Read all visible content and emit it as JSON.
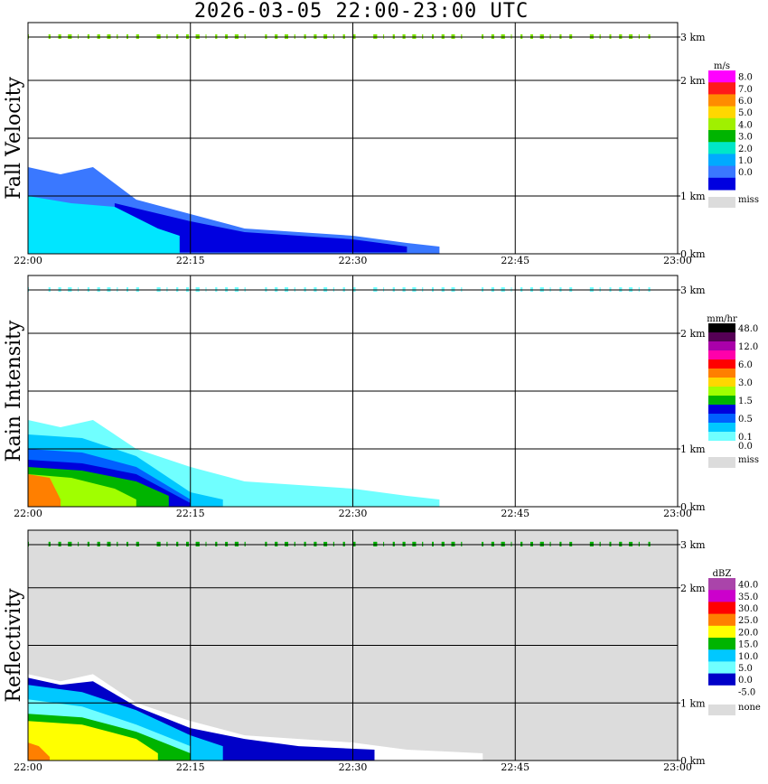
{
  "title": "2026-03-05  22:00-23:00 UTC",
  "x_ticks": [
    "22:00",
    "22:15",
    "22:30",
    "22:45",
    "23:00"
  ],
  "colors": {
    "frame": "#000000",
    "no_data_background": "#dcdcdc",
    "missing_swatch": "#dcdcdc"
  },
  "chart_data": [
    {
      "type": "heatmap",
      "ylabel": "Fall Velocity",
      "unit": "m/s",
      "y_ticks": [
        "0 km",
        "1 km",
        "2 km",
        "3 km"
      ],
      "ylim_km": [
        0,
        3.2
      ],
      "x_range": [
        "22:00",
        "23:00"
      ],
      "background": "#ffffff",
      "scale": [
        {
          "label": "8.0",
          "color": "#ff00ff"
        },
        {
          "label": "7.0",
          "color": "#ff1a1a"
        },
        {
          "label": "6.0",
          "color": "#ff8c00"
        },
        {
          "label": "5.0",
          "color": "#ffd700"
        },
        {
          "label": "4.0",
          "color": "#a0f000"
        },
        {
          "label": "3.0",
          "color": "#00b400"
        },
        {
          "label": "2.0",
          "color": "#00e6c8"
        },
        {
          "label": "1.0",
          "color": "#00aaff"
        },
        {
          "label": "0.0",
          "color": "#3a78ff"
        },
        {
          "label": "",
          "color": "#0000e0"
        }
      ],
      "miss_label": "miss",
      "echo_layers": [
        {
          "color": "#3a78ff",
          "top_km": [
            [
              0,
              1.2
            ],
            [
              3,
              1.1
            ],
            [
              6,
              1.2
            ],
            [
              10,
              0.75
            ],
            [
              15,
              0.55
            ],
            [
              20,
              0.35
            ],
            [
              25,
              0.3
            ],
            [
              30,
              0.25
            ],
            [
              35,
              0.15
            ],
            [
              38,
              0.1
            ],
            [
              38,
              0
            ],
            [
              0,
              0
            ]
          ]
        },
        {
          "color": "#0000e0",
          "top_km": [
            [
              8,
              0.7
            ],
            [
              15,
              0.45
            ],
            [
              20,
              0.3
            ],
            [
              25,
              0.25
            ],
            [
              30,
              0.2
            ],
            [
              35,
              0.1
            ],
            [
              35,
              0.02
            ],
            [
              8,
              0.02
            ]
          ]
        },
        {
          "color": "#00e6ff",
          "top_km": [
            [
              0,
              0.8
            ],
            [
              4,
              0.7
            ],
            [
              8,
              0.65
            ],
            [
              12,
              0.35
            ],
            [
              14,
              0.25
            ],
            [
              14,
              0
            ],
            [
              0,
              0
            ]
          ]
        }
      ],
      "near_3km_band_color": "#7ee600"
    },
    {
      "type": "heatmap",
      "ylabel": "Rain Intensity",
      "unit": "mm/hr",
      "y_ticks": [
        "0 km",
        "1 km",
        "2 km",
        "3 km"
      ],
      "ylim_km": [
        0,
        3.2
      ],
      "x_range": [
        "22:00",
        "23:00"
      ],
      "background": "#ffffff",
      "scale": [
        {
          "label": "48.0",
          "color": "#000000"
        },
        {
          "label": "",
          "color": "#550055"
        },
        {
          "label": "12.0",
          "color": "#aa00aa"
        },
        {
          "label": "",
          "color": "#ff00aa"
        },
        {
          "label": "6.0",
          "color": "#ff0000"
        },
        {
          "label": "",
          "color": "#ff7f00"
        },
        {
          "label": "3.0",
          "color": "#ffd700"
        },
        {
          "label": "",
          "color": "#a0ff00"
        },
        {
          "label": "1.5",
          "color": "#00b400"
        },
        {
          "label": "",
          "color": "#0000dc"
        },
        {
          "label": "0.5",
          "color": "#0060ff"
        },
        {
          "label": "",
          "color": "#00c8ff"
        },
        {
          "label": "0.1",
          "color": "#70ffff"
        },
        {
          "label": "0.0",
          "color": "#ffffff"
        }
      ],
      "miss_label": "miss",
      "echo_layers": [
        {
          "color": "#70ffff",
          "top_km": [
            [
              0,
              1.2
            ],
            [
              3,
              1.1
            ],
            [
              6,
              1.2
            ],
            [
              10,
              0.8
            ],
            [
              15,
              0.55
            ],
            [
              20,
              0.35
            ],
            [
              25,
              0.3
            ],
            [
              30,
              0.25
            ],
            [
              35,
              0.15
            ],
            [
              38,
              0.1
            ],
            [
              38,
              0
            ],
            [
              0,
              0
            ]
          ]
        },
        {
          "color": "#00c8ff",
          "top_km": [
            [
              0,
              1.0
            ],
            [
              5,
              0.95
            ],
            [
              10,
              0.7
            ],
            [
              15,
              0.2
            ],
            [
              18,
              0.1
            ],
            [
              18,
              0
            ],
            [
              0,
              0
            ]
          ]
        },
        {
          "color": "#0060ff",
          "top_km": [
            [
              0,
              0.8
            ],
            [
              5,
              0.75
            ],
            [
              10,
              0.55
            ],
            [
              15,
              0.1
            ],
            [
              15,
              0
            ],
            [
              0,
              0
            ]
          ]
        },
        {
          "color": "#0000dc",
          "top_km": [
            [
              0,
              0.65
            ],
            [
              5,
              0.6
            ],
            [
              10,
              0.45
            ],
            [
              15,
              0.05
            ],
            [
              15,
              0
            ],
            [
              0,
              0
            ]
          ]
        },
        {
          "color": "#00b400",
          "top_km": [
            [
              0,
              0.55
            ],
            [
              5,
              0.5
            ],
            [
              10,
              0.35
            ],
            [
              13,
              0.15
            ],
            [
              13,
              0
            ],
            [
              0,
              0
            ]
          ]
        },
        {
          "color": "#a0ff00",
          "top_km": [
            [
              0,
              0.45
            ],
            [
              4,
              0.4
            ],
            [
              8,
              0.25
            ],
            [
              10,
              0.1
            ],
            [
              10,
              0
            ],
            [
              0,
              0
            ]
          ]
        },
        {
          "color": "#ff7f00",
          "top_km": [
            [
              0,
              0.45
            ],
            [
              2,
              0.4
            ],
            [
              3,
              0.1
            ],
            [
              3,
              0
            ],
            [
              0,
              0
            ]
          ]
        }
      ],
      "near_3km_band_color": "#70ffff"
    },
    {
      "type": "heatmap",
      "ylabel": "Reflectivity",
      "unit": "dBZ",
      "y_ticks": [
        "0 km",
        "1 km",
        "2 km",
        "3 km"
      ],
      "ylim_km": [
        0,
        3.2
      ],
      "x_range": [
        "22:00",
        "23:00"
      ],
      "background": "#dcdcdc",
      "scale": [
        {
          "label": "40.0",
          "color": "#aa44aa"
        },
        {
          "label": "35.0",
          "color": "#cc00cc"
        },
        {
          "label": "30.0",
          "color": "#ff0000"
        },
        {
          "label": "25.0",
          "color": "#ff7f00"
        },
        {
          "label": "20.0",
          "color": "#ffff00"
        },
        {
          "label": "15.0",
          "color": "#00b400"
        },
        {
          "label": "10.0",
          "color": "#00c8ff"
        },
        {
          "label": "5.0",
          "color": "#70ffff"
        },
        {
          "label": "0.0",
          "color": "#0000c8"
        },
        {
          "label": "-5.0",
          "color": "#ffffff"
        }
      ],
      "miss_label": "none",
      "echo_layers": [
        {
          "color": "#ffffff",
          "top_km": [
            [
              0,
              1.2
            ],
            [
              3,
              1.1
            ],
            [
              6,
              1.2
            ],
            [
              10,
              0.8
            ],
            [
              15,
              0.55
            ],
            [
              20,
              0.35
            ],
            [
              25,
              0.3
            ],
            [
              30,
              0.25
            ],
            [
              35,
              0.15
            ],
            [
              42,
              0.1
            ],
            [
              42,
              0
            ],
            [
              0,
              0
            ]
          ]
        },
        {
          "color": "#0000c8",
          "top_km": [
            [
              0,
              1.15
            ],
            [
              3,
              1.05
            ],
            [
              6,
              1.1
            ],
            [
              10,
              0.75
            ],
            [
              15,
              0.45
            ],
            [
              20,
              0.3
            ],
            [
              25,
              0.2
            ],
            [
              32,
              0.15
            ],
            [
              32,
              0
            ],
            [
              0,
              0
            ]
          ]
        },
        {
          "color": "#00c8ff",
          "top_km": [
            [
              0,
              1.05
            ],
            [
              5,
              0.95
            ],
            [
              10,
              0.7
            ],
            [
              15,
              0.35
            ],
            [
              18,
              0.2
            ],
            [
              18,
              0
            ],
            [
              0,
              0
            ]
          ]
        },
        {
          "color": "#70ffff",
          "top_km": [
            [
              0,
              0.85
            ],
            [
              5,
              0.75
            ],
            [
              10,
              0.5
            ],
            [
              15,
              0.2
            ],
            [
              15,
              0
            ],
            [
              0,
              0
            ]
          ]
        },
        {
          "color": "#00b400",
          "top_km": [
            [
              0,
              0.65
            ],
            [
              5,
              0.6
            ],
            [
              10,
              0.4
            ],
            [
              15,
              0.1
            ],
            [
              15,
              0
            ],
            [
              0,
              0
            ]
          ]
        },
        {
          "color": "#ffff00",
          "top_km": [
            [
              0,
              0.55
            ],
            [
              5,
              0.5
            ],
            [
              10,
              0.3
            ],
            [
              12,
              0.1
            ],
            [
              12,
              0
            ],
            [
              0,
              0
            ]
          ]
        },
        {
          "color": "#ff7f00",
          "top_km": [
            [
              0,
              0.25
            ],
            [
              1,
              0.2
            ],
            [
              2,
              0.05
            ],
            [
              2,
              0
            ],
            [
              0,
              0
            ]
          ]
        }
      ],
      "near_3km_band_color": "#00b400"
    }
  ]
}
